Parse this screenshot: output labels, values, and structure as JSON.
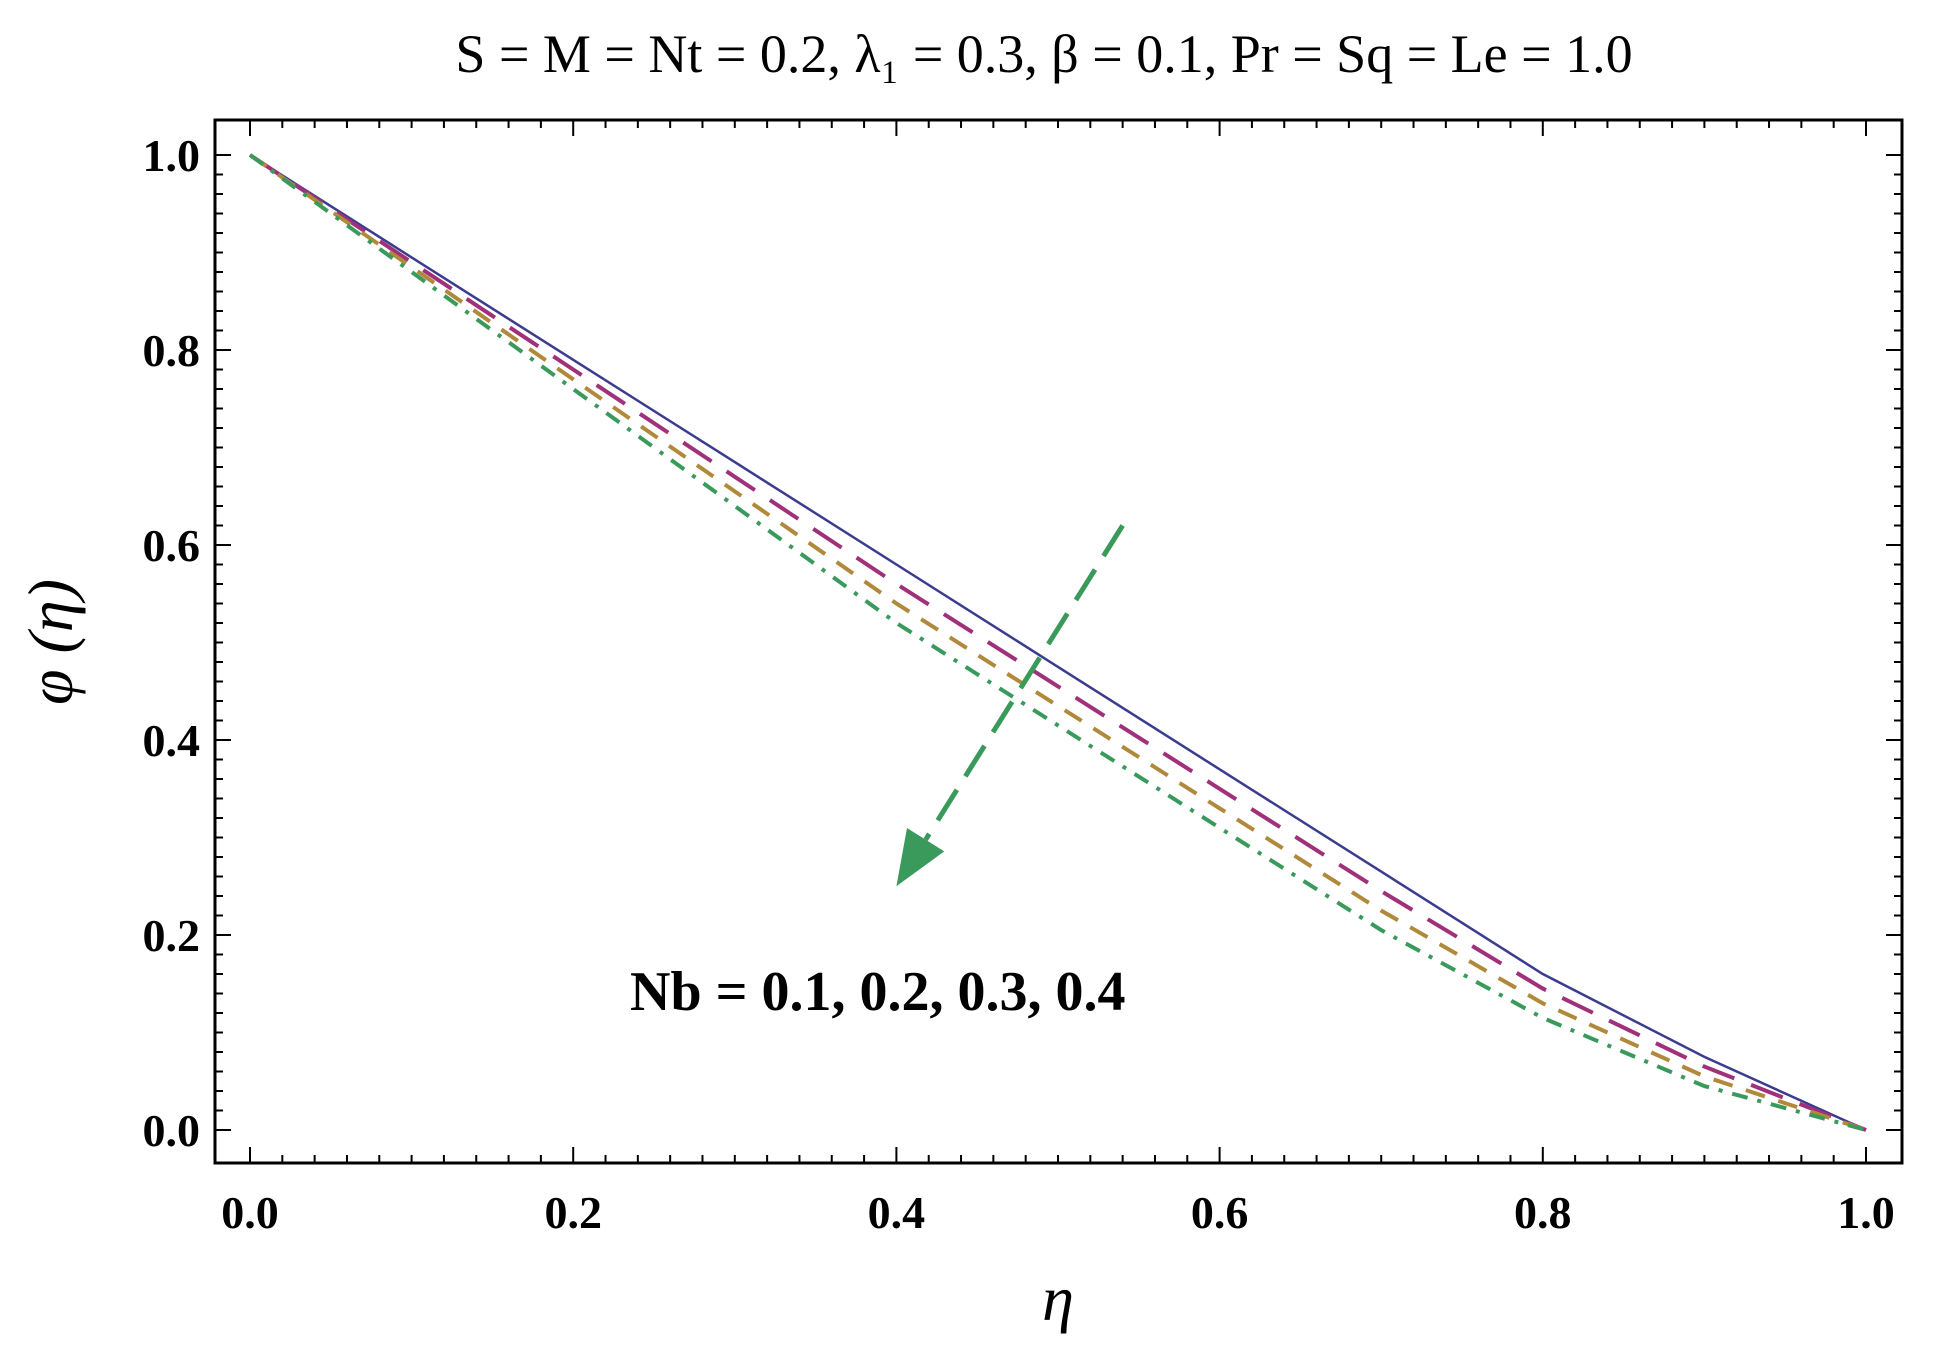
{
  "chart_data": {
    "type": "line",
    "title": "S = M = Nt = 0.2, λ₁ = 0.3, β = 0.1, Pr = Sq = Le = 1.0",
    "xlabel": "η",
    "ylabel": "φ (η)",
    "xlim": [
      0.0,
      1.0
    ],
    "ylim": [
      0.0,
      1.0
    ],
    "xticks": [
      "0.0",
      "0.2",
      "0.4",
      "0.6",
      "0.8",
      "1.0"
    ],
    "yticks": [
      "0.0",
      "0.2",
      "0.4",
      "0.6",
      "0.8",
      "1.0"
    ],
    "annotation": "Nb = 0.1, 0.2, 0.3, 0.4",
    "arrow": {
      "from": [
        0.54,
        0.62
      ],
      "to": [
        0.4,
        0.25
      ],
      "color": "#3a9a5b"
    },
    "grid": false,
    "x": [
      0.0,
      0.1,
      0.2,
      0.3,
      0.4,
      0.5,
      0.6,
      0.7,
      0.8,
      0.9,
      1.0
    ],
    "series": [
      {
        "color": "#3b3b8f",
        "dash": "solid",
        "values": [
          1.0,
          0.895,
          0.79,
          0.685,
          0.58,
          0.475,
          0.37,
          0.265,
          0.16,
          0.075,
          0.0
        ]
      },
      {
        "color": "#a0307a",
        "dash": "long",
        "values": [
          1.0,
          0.89,
          0.78,
          0.67,
          0.56,
          0.455,
          0.35,
          0.245,
          0.145,
          0.065,
          0.0
        ]
      },
      {
        "color": "#b08a3a",
        "dash": "medium",
        "values": [
          1.0,
          0.885,
          0.77,
          0.655,
          0.54,
          0.435,
          0.33,
          0.225,
          0.13,
          0.055,
          0.0
        ]
      },
      {
        "color": "#3a9a5b",
        "dash": "dashdot",
        "values": [
          1.0,
          0.88,
          0.76,
          0.64,
          0.52,
          0.415,
          0.31,
          0.205,
          0.115,
          0.045,
          0.0
        ]
      }
    ]
  }
}
